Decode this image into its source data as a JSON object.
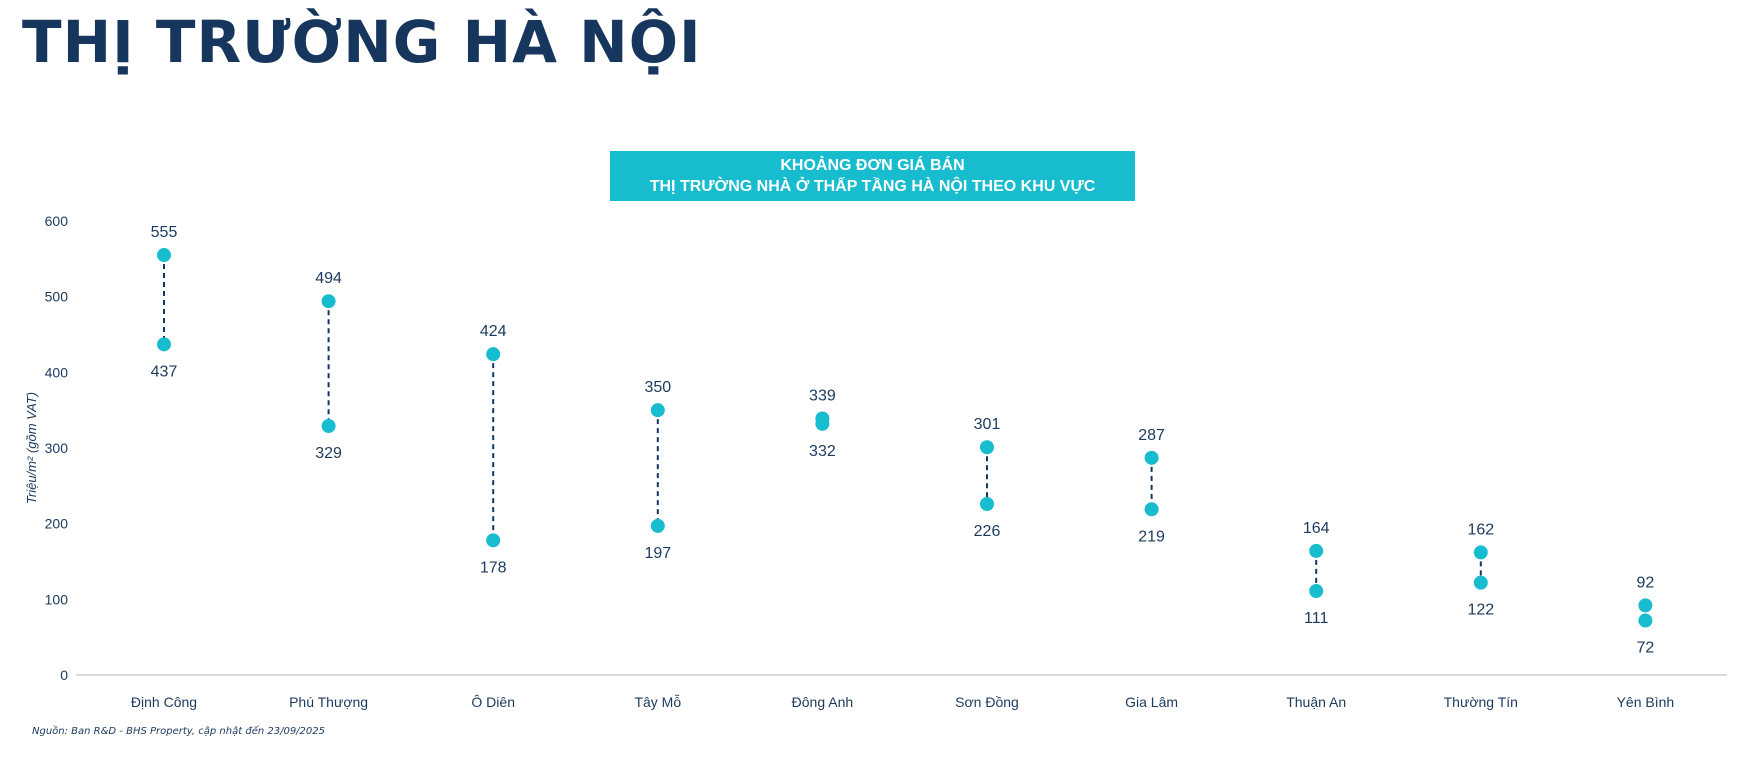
{
  "page_title": "THỊ TRƯỜNG HÀ NỘI",
  "footnote": "Nguồn: Ban R&D - BHS Property, cập nhật đến 23/09/2025",
  "chart_data": {
    "type": "scatter",
    "subtype": "range-dumbbell",
    "title_lines": [
      "KHOẢNG ĐƠN GIÁ BÁN",
      "THỊ TRƯỜNG NHÀ Ở THẤP TẦNG HÀ NỘI THEO KHU VỰC"
    ],
    "ylabel": "Triệu/m² (gồm VAT)",
    "xlabel": "",
    "ylim": [
      0,
      600
    ],
    "yticks": [
      "0",
      "100",
      "200",
      "300",
      "400",
      "500",
      "600"
    ],
    "categories": [
      "Định Công",
      "Phú Thượng",
      "Ô Diên",
      "Tây Mỗ",
      "Đông Anh",
      "Sơn Đồng",
      "Gia Lâm",
      "Thuận An",
      "Thường Tín",
      "Yên Bình"
    ],
    "series": [
      {
        "name": "max",
        "values": [
          555,
          494,
          424,
          350,
          339,
          301,
          287,
          164,
          162,
          92
        ]
      },
      {
        "name": "min",
        "values": [
          437,
          329,
          178,
          197,
          332,
          226,
          219,
          111,
          122,
          72
        ]
      }
    ],
    "colors": {
      "marker": "#17bccf",
      "connector": "#17365d",
      "axis": "#d9d9d9"
    },
    "grid": false
  }
}
